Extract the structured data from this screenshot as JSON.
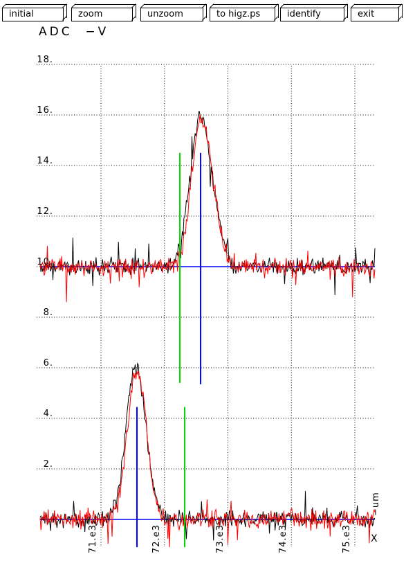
{
  "toolbar": {
    "buttons": [
      {
        "label": "initial"
      },
      {
        "label": "zoom"
      },
      {
        "label": "unzoom"
      },
      {
        "label": "to higz.ps"
      },
      {
        "label": "identify"
      },
      {
        "label": "exit"
      }
    ]
  },
  "chart_data": {
    "type": "line",
    "title": "ADC  −V",
    "xlabel": "X",
    "xunit": "−um",
    "grid": "dotted",
    "x_range": [
      70041,
      75316
    ],
    "y_range": [
      -1.2,
      18.5
    ],
    "x_ticks": [
      71000,
      72000,
      73000,
      74000,
      75000
    ],
    "x_tick_labels": [
      "71.e3",
      "72.e3",
      "73.e3",
      "74.e3",
      "75.e3"
    ],
    "y_ticks": [
      18,
      16,
      14,
      12,
      10,
      8,
      6,
      4,
      2
    ],
    "y_tick_labels": [
      "18.",
      "16.",
      "14.",
      "12.",
      "10.",
      "8.",
      "6.",
      "4.",
      "2."
    ],
    "series": [
      {
        "name": "upper-trace-black",
        "color": "#000000",
        "baseline": 10,
        "peaks": [
          {
            "center": 72570,
            "height": 6.0,
            "sigma": 165
          },
          {
            "center": 72850,
            "height": 0.7,
            "sigma": 80
          }
        ],
        "noise": 0.16,
        "spike_p": 0.05,
        "spike_amp": 0.9,
        "spike_bias": 0.5,
        "seed": 9001
      },
      {
        "name": "upper-trace-red",
        "color": "#ff0000",
        "baseline": 10,
        "peaks": [
          {
            "center": 72585,
            "height": 5.85,
            "sigma": 158
          },
          {
            "center": 72840,
            "height": 0.6,
            "sigma": 80
          }
        ],
        "noise": 0.18,
        "spike_p": 0.06,
        "spike_amp": 1.0,
        "spike_bias": 0.65,
        "seed": 4242
      },
      {
        "name": "lower-trace-black",
        "color": "#000000",
        "baseline": 0,
        "peaks": [
          {
            "center": 71560,
            "height": 5.9,
            "sigma": 155
          },
          {
            "center": 71440,
            "height": 0.5,
            "sigma": 70
          }
        ],
        "noise": 0.16,
        "spike_p": 0.05,
        "spike_amp": 0.9,
        "spike_bias": 0.5,
        "seed": 7331
      },
      {
        "name": "lower-trace-red",
        "color": "#ff0000",
        "baseline": 0,
        "peaks": [
          {
            "center": 71575,
            "height": 5.75,
            "sigma": 150
          },
          {
            "center": 71450,
            "height": 0.45,
            "sigma": 70
          }
        ],
        "noise": 0.18,
        "spike_p": 0.06,
        "spike_amp": 1.0,
        "spike_bias": 0.65,
        "seed": 1234
      }
    ],
    "markers": {
      "baseline_lines": [
        {
          "name": "upper-baseline-fit-line",
          "y": 10,
          "color": "#0000ff"
        },
        {
          "name": "lower-baseline-fit-line",
          "y": 0,
          "color": "#0000ff"
        }
      ],
      "vertical_lines": [
        {
          "name": "upper-green-marker",
          "x": 72243,
          "y1": 5.4,
          "y2": 14.5,
          "color": "#00d500"
        },
        {
          "name": "upper-blue-marker",
          "x": 72570,
          "y1": 5.35,
          "y2": 14.5,
          "color": "#0000ff"
        },
        {
          "name": "lower-blue-marker",
          "x": 71567,
          "y1": -1.1,
          "y2": 4.45,
          "color": "#0000ff"
        },
        {
          "name": "lower-green-marker",
          "x": 72319,
          "y1": -1.1,
          "y2": 4.45,
          "color": "#00d500"
        }
      ]
    }
  }
}
